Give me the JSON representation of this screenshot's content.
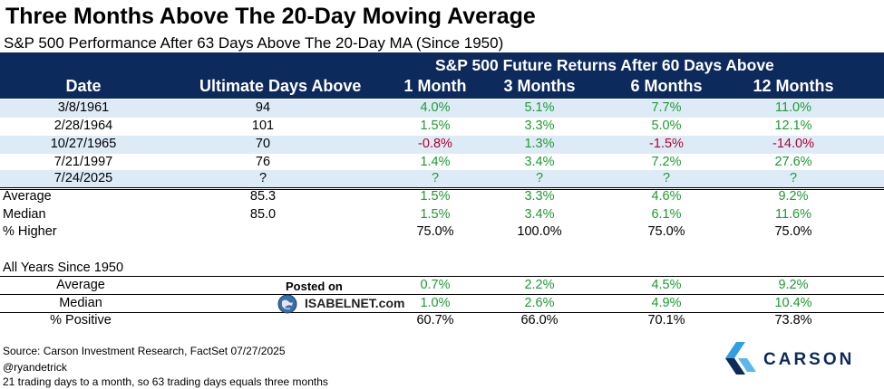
{
  "title": "Three Months Above The 20-Day Moving Average",
  "subtitle": "S&P 500 Performance After 63 Days Above The 20-Day MA (Since 1950)",
  "header": {
    "super": "S&P 500 Future Returns After 60 Days Above",
    "columns": [
      "Date",
      "Ultimate Days Above",
      "1 Month",
      "3 Months",
      "6 Months",
      "12 Months"
    ]
  },
  "rows": [
    {
      "date": "3/8/1961",
      "days": "94",
      "m1": "4.0%",
      "m3": "5.1%",
      "m6": "7.7%",
      "m12": "11.0%"
    },
    {
      "date": "2/28/1964",
      "days": "101",
      "m1": "1.5%",
      "m3": "3.3%",
      "m6": "5.0%",
      "m12": "12.1%"
    },
    {
      "date": "10/27/1965",
      "days": "70",
      "m1": "-0.8%",
      "m3": "1.3%",
      "m6": "-1.5%",
      "m12": "-14.0%"
    },
    {
      "date": "7/21/1997",
      "days": "76",
      "m1": "1.4%",
      "m3": "3.4%",
      "m6": "7.2%",
      "m12": "27.6%"
    },
    {
      "date": "7/24/2025",
      "days": "?",
      "m1": "?",
      "m3": "?",
      "m6": "?",
      "m12": "?"
    }
  ],
  "summary": [
    {
      "label": "Average",
      "days": "85.3",
      "m1": "1.5%",
      "m3": "3.3%",
      "m6": "4.6%",
      "m12": "9.2%"
    },
    {
      "label": "Median",
      "days": "85.0",
      "m1": "1.5%",
      "m3": "3.4%",
      "m6": "6.1%",
      "m12": "11.6%"
    },
    {
      "label": "% Higher",
      "days": "",
      "m1": "75.0%",
      "m3": "100.0%",
      "m6": "75.0%",
      "m12": "75.0%"
    }
  ],
  "all_years": {
    "title": "All Years Since 1950",
    "rows": [
      {
        "label": "Average",
        "m1": "0.7%",
        "m3": "2.2%",
        "m6": "4.5%",
        "m12": "9.2%"
      },
      {
        "label": "Median",
        "m1": "1.0%",
        "m3": "2.6%",
        "m6": "4.9%",
        "m12": "10.4%"
      },
      {
        "label": "% Positive",
        "m1": "60.7%",
        "m3": "66.0%",
        "m6": "70.1%",
        "m12": "73.8%"
      }
    ]
  },
  "watermark": {
    "posted_on": "Posted on",
    "site": "ISABELNET.com"
  },
  "footer": [
    "Source: Carson Investment Research, FactSet 07/27/2025",
    "@ryandetrick",
    "21 trading days to a month, so 63 trading days equals three months"
  ],
  "logo": {
    "text": "CARSON"
  },
  "colors": {
    "header": "#0d2a5c",
    "shade": "#ddebf7",
    "positive": "#1e9a32",
    "negative": "#b3002d"
  }
}
